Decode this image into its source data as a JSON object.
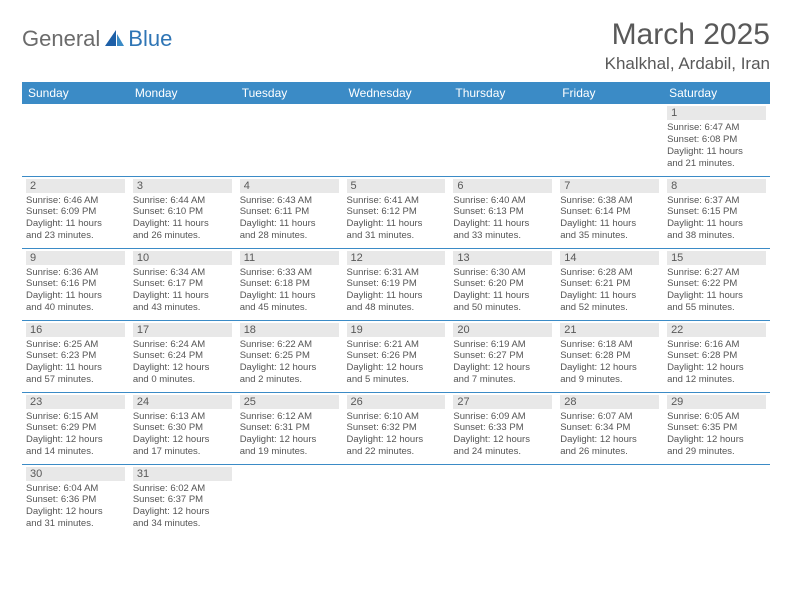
{
  "logo": {
    "general": "General",
    "blue": "Blue"
  },
  "header": {
    "month_title": "March 2025",
    "location": "Khalkhal, Ardabil, Iran"
  },
  "weekdays": [
    "Sunday",
    "Monday",
    "Tuesday",
    "Wednesday",
    "Thursday",
    "Friday",
    "Saturday"
  ],
  "colors": {
    "header_bg": "#3b8bc6",
    "header_fg": "#ffffff",
    "daynum_bg": "#e8e8e8",
    "text": "#595959",
    "rule": "#3b8bc6",
    "logo_gray": "#6b6b6b",
    "logo_blue": "#2f75b5"
  },
  "grid": {
    "rows": 6,
    "cols": 7,
    "first_weekday_index": 6,
    "days_in_month": 31
  },
  "days": {
    "1": {
      "sunrise": "6:47 AM",
      "sunset": "6:08 PM",
      "daylight_h": 11,
      "daylight_m": 21
    },
    "2": {
      "sunrise": "6:46 AM",
      "sunset": "6:09 PM",
      "daylight_h": 11,
      "daylight_m": 23
    },
    "3": {
      "sunrise": "6:44 AM",
      "sunset": "6:10 PM",
      "daylight_h": 11,
      "daylight_m": 26
    },
    "4": {
      "sunrise": "6:43 AM",
      "sunset": "6:11 PM",
      "daylight_h": 11,
      "daylight_m": 28
    },
    "5": {
      "sunrise": "6:41 AM",
      "sunset": "6:12 PM",
      "daylight_h": 11,
      "daylight_m": 31
    },
    "6": {
      "sunrise": "6:40 AM",
      "sunset": "6:13 PM",
      "daylight_h": 11,
      "daylight_m": 33
    },
    "7": {
      "sunrise": "6:38 AM",
      "sunset": "6:14 PM",
      "daylight_h": 11,
      "daylight_m": 35
    },
    "8": {
      "sunrise": "6:37 AM",
      "sunset": "6:15 PM",
      "daylight_h": 11,
      "daylight_m": 38
    },
    "9": {
      "sunrise": "6:36 AM",
      "sunset": "6:16 PM",
      "daylight_h": 11,
      "daylight_m": 40
    },
    "10": {
      "sunrise": "6:34 AM",
      "sunset": "6:17 PM",
      "daylight_h": 11,
      "daylight_m": 43
    },
    "11": {
      "sunrise": "6:33 AM",
      "sunset": "6:18 PM",
      "daylight_h": 11,
      "daylight_m": 45
    },
    "12": {
      "sunrise": "6:31 AM",
      "sunset": "6:19 PM",
      "daylight_h": 11,
      "daylight_m": 48
    },
    "13": {
      "sunrise": "6:30 AM",
      "sunset": "6:20 PM",
      "daylight_h": 11,
      "daylight_m": 50
    },
    "14": {
      "sunrise": "6:28 AM",
      "sunset": "6:21 PM",
      "daylight_h": 11,
      "daylight_m": 52
    },
    "15": {
      "sunrise": "6:27 AM",
      "sunset": "6:22 PM",
      "daylight_h": 11,
      "daylight_m": 55
    },
    "16": {
      "sunrise": "6:25 AM",
      "sunset": "6:23 PM",
      "daylight_h": 11,
      "daylight_m": 57
    },
    "17": {
      "sunrise": "6:24 AM",
      "sunset": "6:24 PM",
      "daylight_h": 12,
      "daylight_m": 0
    },
    "18": {
      "sunrise": "6:22 AM",
      "sunset": "6:25 PM",
      "daylight_h": 12,
      "daylight_m": 2
    },
    "19": {
      "sunrise": "6:21 AM",
      "sunset": "6:26 PM",
      "daylight_h": 12,
      "daylight_m": 5
    },
    "20": {
      "sunrise": "6:19 AM",
      "sunset": "6:27 PM",
      "daylight_h": 12,
      "daylight_m": 7
    },
    "21": {
      "sunrise": "6:18 AM",
      "sunset": "6:28 PM",
      "daylight_h": 12,
      "daylight_m": 9
    },
    "22": {
      "sunrise": "6:16 AM",
      "sunset": "6:28 PM",
      "daylight_h": 12,
      "daylight_m": 12
    },
    "23": {
      "sunrise": "6:15 AM",
      "sunset": "6:29 PM",
      "daylight_h": 12,
      "daylight_m": 14
    },
    "24": {
      "sunrise": "6:13 AM",
      "sunset": "6:30 PM",
      "daylight_h": 12,
      "daylight_m": 17
    },
    "25": {
      "sunrise": "6:12 AM",
      "sunset": "6:31 PM",
      "daylight_h": 12,
      "daylight_m": 19
    },
    "26": {
      "sunrise": "6:10 AM",
      "sunset": "6:32 PM",
      "daylight_h": 12,
      "daylight_m": 22
    },
    "27": {
      "sunrise": "6:09 AM",
      "sunset": "6:33 PM",
      "daylight_h": 12,
      "daylight_m": 24
    },
    "28": {
      "sunrise": "6:07 AM",
      "sunset": "6:34 PM",
      "daylight_h": 12,
      "daylight_m": 26
    },
    "29": {
      "sunrise": "6:05 AM",
      "sunset": "6:35 PM",
      "daylight_h": 12,
      "daylight_m": 29
    },
    "30": {
      "sunrise": "6:04 AM",
      "sunset": "6:36 PM",
      "daylight_h": 12,
      "daylight_m": 31
    },
    "31": {
      "sunrise": "6:02 AM",
      "sunset": "6:37 PM",
      "daylight_h": 12,
      "daylight_m": 34
    }
  },
  "labels": {
    "sunrise_prefix": "Sunrise: ",
    "sunset_prefix": "Sunset: ",
    "daylight_prefix": "Daylight: ",
    "hours_word": " hours",
    "and_word": "and ",
    "minutes_word": " minutes."
  }
}
